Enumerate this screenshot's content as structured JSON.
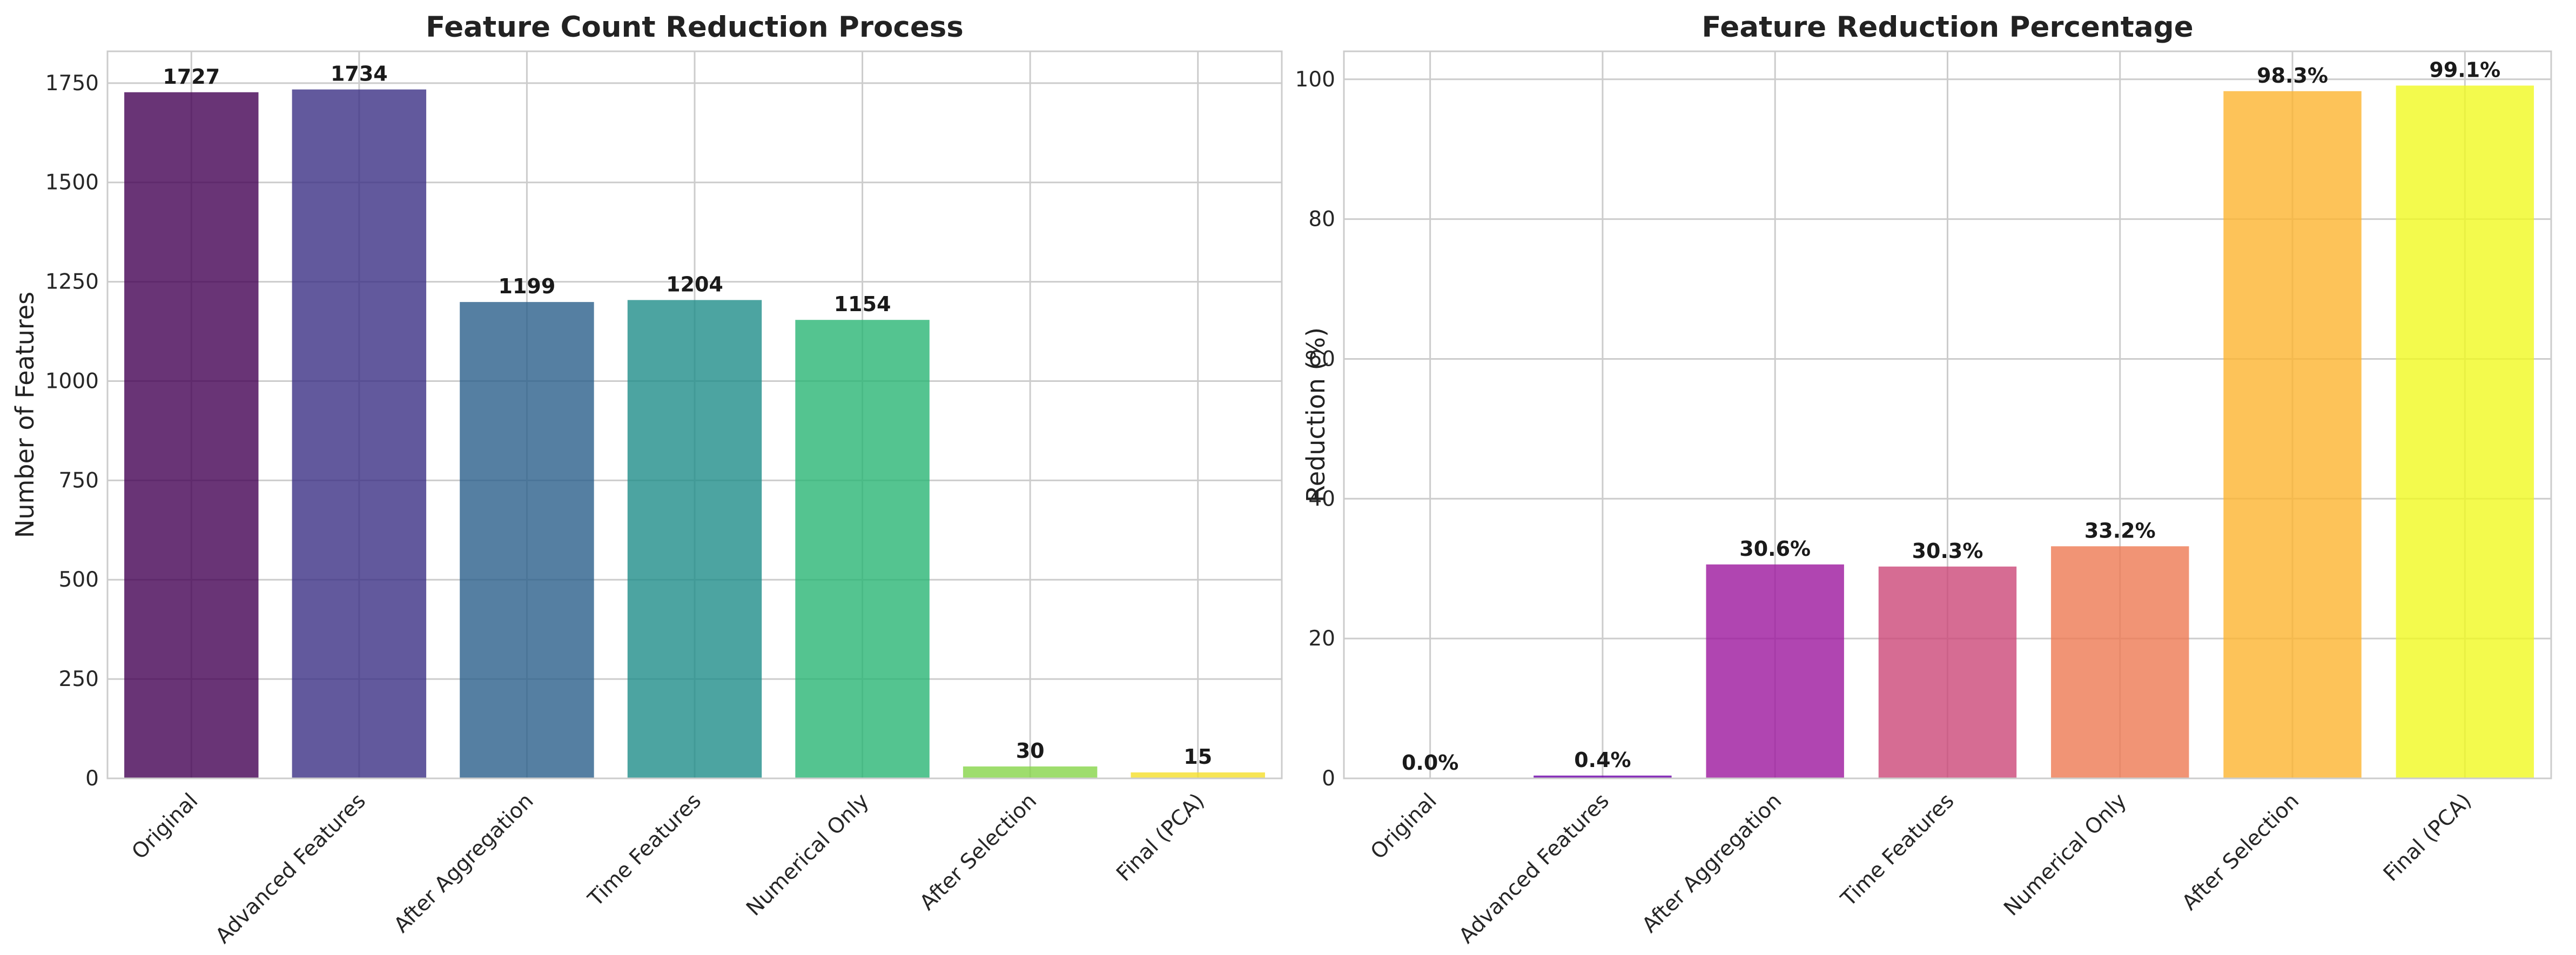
{
  "chart_data": [
    {
      "type": "bar",
      "title": "Feature Count Reduction Process",
      "xlabel": "",
      "ylabel": "Number of Features",
      "ylim": [
        0,
        1830
      ],
      "yticks": [
        0,
        250,
        500,
        750,
        1000,
        1250,
        1500,
        1750
      ],
      "grid": true,
      "categories": [
        "Original",
        "Advanced Features",
        "After Aggregation",
        "Time Features",
        "Numerical Only",
        "After Selection",
        "Final (PCA)"
      ],
      "values": [
        1727,
        1734,
        1199,
        1204,
        1154,
        30,
        15
      ],
      "value_labels": [
        "1727",
        "1734",
        "1199",
        "1204",
        "1154",
        "30",
        "15"
      ],
      "colors": [
        "#440154",
        "#3b2f85",
        "#2a5f8b",
        "#1f8d8a",
        "#29b574",
        "#86d549",
        "#f5df2b"
      ]
    },
    {
      "type": "bar",
      "title": "Feature Reduction Percentage",
      "xlabel": "",
      "ylabel": "Reduction (%)",
      "ylim": [
        0,
        104
      ],
      "yticks": [
        0,
        20,
        40,
        60,
        80,
        100
      ],
      "grid": true,
      "categories": [
        "Original",
        "Advanced Features",
        "After Aggregation",
        "Time Features",
        "Numerical Only",
        "After Selection",
        "Final (PCA)"
      ],
      "values": [
        0.0,
        0.4,
        30.6,
        30.3,
        33.2,
        98.3,
        99.1
      ],
      "value_labels": [
        "0.0%",
        "0.4%",
        "30.6%",
        "30.3%",
        "33.2%",
        "98.3%",
        "99.1%"
      ],
      "colors": [
        "#0d0887",
        "#6a00a8",
        "#9c179e",
        "#cc4778",
        "#ed7953",
        "#fdb42f",
        "#f0f921"
      ]
    }
  ]
}
